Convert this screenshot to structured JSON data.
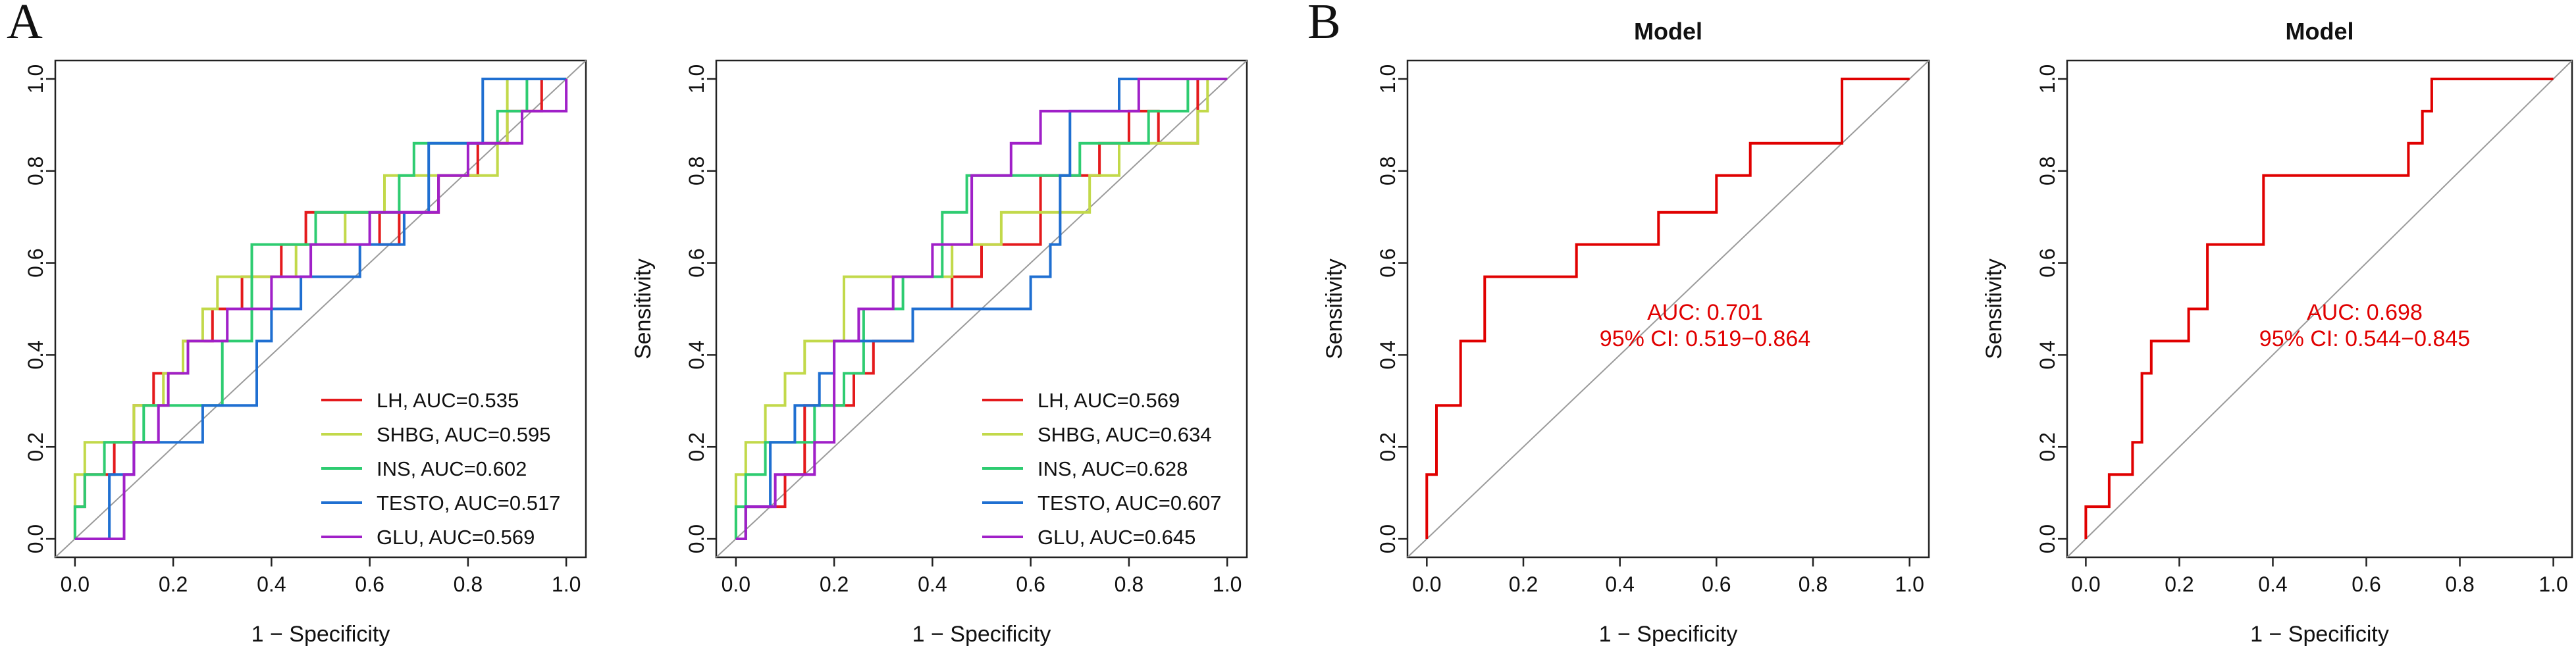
{
  "figure": {
    "panel_labels": [
      "A",
      "B"
    ]
  },
  "chart_data": [
    {
      "type": "line",
      "panel": "A",
      "title": "",
      "xlabel": "1 − Specificity",
      "ylabel": "Sensitivity",
      "xlim": [
        0,
        1
      ],
      "ylim": [
        0,
        1
      ],
      "ticks": [
        "0.0",
        "0.2",
        "0.4",
        "0.6",
        "0.8",
        "1.0"
      ],
      "diagonal": true,
      "legend_position": "bottom-right",
      "series": [
        {
          "name": "LH",
          "label": "LH, AUC=0.535",
          "color": "#e41a1c",
          "x": [
            0,
            0,
            0.02,
            0.02,
            0.08,
            0.08,
            0.12,
            0.12,
            0.16,
            0.16,
            0.22,
            0.22,
            0.28,
            0.28,
            0.34,
            0.34,
            0.42,
            0.42,
            0.47,
            0.47,
            0.55,
            0.55,
            0.62,
            0.62,
            0.66,
            0.66,
            0.74,
            0.74,
            0.82,
            0.82,
            0.88,
            0.88,
            0.95,
            0.95,
            1.0
          ],
          "y": [
            0,
            0.07,
            0.07,
            0.14,
            0.14,
            0.21,
            0.21,
            0.29,
            0.29,
            0.36,
            0.36,
            0.43,
            0.43,
            0.5,
            0.5,
            0.57,
            0.57,
            0.64,
            0.64,
            0.71,
            0.71,
            0.71,
            0.71,
            0.64,
            0.64,
            0.71,
            0.71,
            0.79,
            0.79,
            0.86,
            0.86,
            0.93,
            0.93,
            1.0,
            1.0
          ]
        },
        {
          "name": "SHBG",
          "label": "SHBG, AUC=0.595",
          "color": "#c2d94a",
          "x": [
            0,
            0,
            0.02,
            0.02,
            0.12,
            0.12,
            0.18,
            0.18,
            0.22,
            0.22,
            0.26,
            0.26,
            0.29,
            0.29,
            0.35,
            0.35,
            0.45,
            0.45,
            0.55,
            0.55,
            0.63,
            0.63,
            0.72,
            0.72,
            0.86,
            0.86,
            0.88,
            0.88,
            0.92,
            0.92,
            1.0
          ],
          "y": [
            0,
            0.14,
            0.14,
            0.21,
            0.21,
            0.29,
            0.29,
            0.36,
            0.36,
            0.43,
            0.43,
            0.5,
            0.5,
            0.57,
            0.57,
            0.57,
            0.57,
            0.64,
            0.64,
            0.71,
            0.71,
            0.79,
            0.79,
            0.79,
            0.79,
            0.86,
            0.86,
            1.0,
            1.0,
            1.0,
            1.0
          ]
        },
        {
          "name": "INS",
          "label": "INS, AUC=0.602",
          "color": "#2ecc71",
          "x": [
            0,
            0,
            0.02,
            0.02,
            0.06,
            0.06,
            0.14,
            0.14,
            0.2,
            0.2,
            0.3,
            0.3,
            0.36,
            0.36,
            0.45,
            0.45,
            0.49,
            0.49,
            0.58,
            0.58,
            0.66,
            0.66,
            0.69,
            0.69,
            0.78,
            0.78,
            0.86,
            0.86,
            0.92,
            0.92,
            1.0
          ],
          "y": [
            0,
            0.07,
            0.07,
            0.14,
            0.14,
            0.21,
            0.21,
            0.29,
            0.29,
            0.29,
            0.29,
            0.43,
            0.43,
            0.64,
            0.64,
            0.64,
            0.64,
            0.71,
            0.71,
            0.71,
            0.71,
            0.79,
            0.79,
            0.86,
            0.86,
            0.86,
            0.86,
            0.93,
            0.93,
            1.0,
            1.0
          ]
        },
        {
          "name": "TESTO",
          "label": "TESTO, AUC=0.517",
          "color": "#1f6fd1",
          "x": [
            0,
            0,
            0.07,
            0.07,
            0.12,
            0.12,
            0.26,
            0.26,
            0.37,
            0.37,
            0.4,
            0.4,
            0.46,
            0.46,
            0.54,
            0.54,
            0.58,
            0.58,
            0.67,
            0.67,
            0.72,
            0.72,
            0.76,
            0.76,
            0.83,
            0.83,
            0.9,
            0.9,
            1.0
          ],
          "y": [
            0,
            0.0,
            0.0,
            0.14,
            0.14,
            0.21,
            0.21,
            0.29,
            0.29,
            0.43,
            0.43,
            0.5,
            0.5,
            0.57,
            0.57,
            0.57,
            0.57,
            0.64,
            0.64,
            0.71,
            0.71,
            0.86,
            0.86,
            0.86,
            0.86,
            1.0,
            1.0,
            1.0,
            1.0
          ]
        },
        {
          "name": "GLU",
          "label": "GLU, AUC=0.569",
          "color": "#a020c8",
          "x": [
            0,
            0,
            0.1,
            0.1,
            0.12,
            0.12,
            0.17,
            0.17,
            0.19,
            0.19,
            0.23,
            0.23,
            0.31,
            0.31,
            0.4,
            0.4,
            0.48,
            0.48,
            0.55,
            0.55,
            0.6,
            0.6,
            0.67,
            0.67,
            0.74,
            0.74,
            0.8,
            0.8,
            0.91,
            0.91,
            1.0,
            1.0
          ],
          "y": [
            0,
            0.0,
            0.0,
            0.14,
            0.14,
            0.21,
            0.21,
            0.29,
            0.29,
            0.36,
            0.36,
            0.43,
            0.43,
            0.5,
            0.5,
            0.57,
            0.57,
            0.64,
            0.64,
            0.64,
            0.64,
            0.71,
            0.71,
            0.71,
            0.71,
            0.79,
            0.79,
            0.86,
            0.86,
            0.93,
            0.93,
            1.0
          ]
        }
      ]
    },
    {
      "type": "line",
      "panel": "",
      "title": "",
      "xlabel": "1 − Specificity",
      "ylabel": "Sensitivity",
      "xlim": [
        0,
        1
      ],
      "ylim": [
        0,
        1
      ],
      "ticks": [
        "0.0",
        "0.2",
        "0.4",
        "0.6",
        "0.8",
        "1.0"
      ],
      "diagonal": true,
      "legend_position": "bottom-right",
      "series": [
        {
          "name": "LH",
          "label": "LH, AUC=0.569",
          "color": "#e41a1c",
          "x": [
            0,
            0.02,
            0.02,
            0.1,
            0.1,
            0.14,
            0.14,
            0.24,
            0.24,
            0.28,
            0.28,
            0.36,
            0.36,
            0.44,
            0.44,
            0.5,
            0.5,
            0.62,
            0.62,
            0.74,
            0.74,
            0.8,
            0.8,
            0.86,
            0.86,
            0.94,
            0.94,
            1.0
          ],
          "y": [
            0,
            0.0,
            0.07,
            0.07,
            0.14,
            0.14,
            0.29,
            0.29,
            0.36,
            0.36,
            0.43,
            0.43,
            0.5,
            0.5,
            0.57,
            0.57,
            0.64,
            0.64,
            0.79,
            0.79,
            0.86,
            0.86,
            0.93,
            0.93,
            0.86,
            0.86,
            1.0,
            1.0
          ]
        },
        {
          "name": "SHBG",
          "label": "SHBG, AUC=0.634",
          "color": "#c2d94a",
          "x": [
            0,
            0,
            0.02,
            0.02,
            0.06,
            0.06,
            0.1,
            0.1,
            0.14,
            0.14,
            0.22,
            0.22,
            0.4,
            0.4,
            0.44,
            0.44,
            0.54,
            0.54,
            0.62,
            0.62,
            0.72,
            0.72,
            0.78,
            0.78,
            0.86,
            0.86,
            0.94,
            0.94,
            0.96,
            0.96,
            1.0
          ],
          "y": [
            0,
            0.14,
            0.14,
            0.21,
            0.21,
            0.29,
            0.29,
            0.36,
            0.36,
            0.43,
            0.43,
            0.57,
            0.57,
            0.57,
            0.57,
            0.64,
            0.64,
            0.71,
            0.71,
            0.71,
            0.71,
            0.79,
            0.79,
            0.86,
            0.86,
            0.86,
            0.86,
            0.93,
            0.93,
            1.0,
            1.0
          ]
        },
        {
          "name": "INS",
          "label": "INS, AUC=0.628",
          "color": "#2ecc71",
          "x": [
            0,
            0,
            0.02,
            0.02,
            0.06,
            0.06,
            0.16,
            0.16,
            0.22,
            0.22,
            0.26,
            0.26,
            0.34,
            0.34,
            0.42,
            0.42,
            0.47,
            0.47,
            0.52,
            0.52,
            0.56,
            0.56,
            0.7,
            0.7,
            0.84,
            0.84,
            0.92,
            0.92,
            1.0
          ],
          "y": [
            0,
            0.07,
            0.07,
            0.14,
            0.14,
            0.21,
            0.21,
            0.29,
            0.29,
            0.36,
            0.36,
            0.5,
            0.5,
            0.57,
            0.57,
            0.71,
            0.71,
            0.79,
            0.79,
            0.79,
            0.79,
            0.79,
            0.79,
            0.86,
            0.86,
            0.93,
            0.93,
            1.0,
            1.0
          ]
        },
        {
          "name": "TESTO",
          "label": "TESTO, AUC=0.607",
          "color": "#1f6fd1",
          "x": [
            0,
            0.02,
            0.02,
            0.07,
            0.07,
            0.12,
            0.12,
            0.17,
            0.17,
            0.2,
            0.2,
            0.36,
            0.36,
            0.4,
            0.4,
            0.6,
            0.6,
            0.64,
            0.64,
            0.66,
            0.66,
            0.68,
            0.68,
            0.78,
            0.78,
            0.84,
            0.84,
            0.92,
            0.92,
            1.0
          ],
          "y": [
            0,
            0.0,
            0.07,
            0.07,
            0.21,
            0.21,
            0.29,
            0.29,
            0.36,
            0.36,
            0.43,
            0.43,
            0.5,
            0.5,
            0.5,
            0.5,
            0.57,
            0.57,
            0.64,
            0.64,
            0.79,
            0.79,
            0.93,
            0.93,
            1.0,
            1.0,
            1.0,
            1.0,
            1.0,
            1.0
          ]
        },
        {
          "name": "GLU",
          "label": "GLU, AUC=0.645",
          "color": "#a020c8",
          "x": [
            0,
            0.02,
            0.02,
            0.08,
            0.08,
            0.16,
            0.16,
            0.2,
            0.2,
            0.25,
            0.25,
            0.32,
            0.32,
            0.4,
            0.4,
            0.48,
            0.48,
            0.56,
            0.56,
            0.62,
            0.62,
            0.72,
            0.72,
            0.82,
            0.82,
            0.86,
            0.86,
            0.94,
            0.94,
            1.0
          ],
          "y": [
            0,
            0.0,
            0.07,
            0.07,
            0.14,
            0.14,
            0.21,
            0.21,
            0.43,
            0.43,
            0.5,
            0.5,
            0.57,
            0.57,
            0.64,
            0.64,
            0.79,
            0.79,
            0.86,
            0.86,
            0.93,
            0.93,
            0.93,
            0.93,
            1.0,
            1.0,
            1.0,
            1.0,
            1.0,
            1.0
          ]
        }
      ]
    },
    {
      "type": "line",
      "panel": "B",
      "title": "Model",
      "xlabel": "1 − Specificity",
      "ylabel": "Sensitivity",
      "xlim": [
        0,
        1
      ],
      "ylim": [
        0,
        1
      ],
      "ticks": [
        "0.0",
        "0.2",
        "0.4",
        "0.6",
        "0.8",
        "1.0"
      ],
      "diagonal": true,
      "annotation": {
        "auc": "AUC: 0.701",
        "ci": "95% CI: 0.519−0.864",
        "color": "#e00000"
      },
      "series": [
        {
          "name": "Model",
          "label": "",
          "color": "#e00000",
          "x": [
            0,
            0,
            0.02,
            0.02,
            0.07,
            0.07,
            0.12,
            0.12,
            0.31,
            0.31,
            0.48,
            0.48,
            0.6,
            0.6,
            0.67,
            0.67,
            0.86,
            0.86,
            1.0
          ],
          "y": [
            0,
            0.14,
            0.14,
            0.29,
            0.29,
            0.43,
            0.43,
            0.57,
            0.57,
            0.64,
            0.64,
            0.71,
            0.71,
            0.79,
            0.79,
            0.86,
            0.86,
            1.0,
            1.0
          ]
        }
      ]
    },
    {
      "type": "line",
      "panel": "",
      "title": "Model",
      "xlabel": "1 − Specificity",
      "ylabel": "Sensitivity",
      "xlim": [
        0,
        1
      ],
      "ylim": [
        0,
        1
      ],
      "ticks": [
        "0.0",
        "0.2",
        "0.4",
        "0.6",
        "0.8",
        "1.0"
      ],
      "diagonal": true,
      "annotation": {
        "auc": "AUC: 0.698",
        "ci": "95% CI: 0.544−0.845",
        "color": "#e00000"
      },
      "series": [
        {
          "name": "Model",
          "label": "",
          "color": "#e00000",
          "x": [
            0,
            0,
            0.05,
            0.05,
            0.1,
            0.1,
            0.12,
            0.12,
            0.14,
            0.14,
            0.18,
            0.18,
            0.22,
            0.22,
            0.26,
            0.26,
            0.38,
            0.38,
            0.69,
            0.69,
            0.72,
            0.72,
            0.74,
            0.74,
            0.76,
            0.76,
            1.0
          ],
          "y": [
            0,
            0.07,
            0.07,
            0.14,
            0.14,
            0.21,
            0.21,
            0.36,
            0.36,
            0.43,
            0.43,
            0.43,
            0.43,
            0.5,
            0.5,
            0.64,
            0.64,
            0.79,
            0.79,
            0.86,
            0.86,
            0.93,
            0.93,
            1.0,
            1.0,
            1.0,
            1.0
          ]
        }
      ]
    }
  ]
}
